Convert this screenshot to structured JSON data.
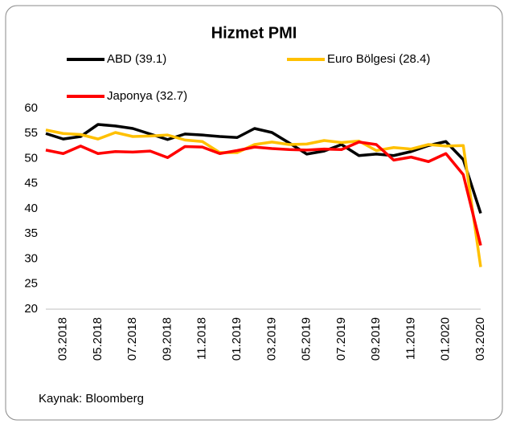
{
  "chart_data": {
    "type": "line",
    "title": "Hizmet PMI",
    "categories": [
      null,
      "03.2018",
      null,
      "05.2018",
      null,
      "07.2018",
      null,
      "09.2018",
      null,
      "11.2018",
      null,
      "01.2019",
      null,
      "03.2019",
      null,
      "05.2019",
      null,
      "07.2019",
      null,
      "09.2019",
      null,
      "11.2019",
      null,
      "01.2020",
      null,
      "03.2020"
    ],
    "series": [
      {
        "name": "ABD (39.1)",
        "color": "#000000",
        "values": [
          55.0,
          53.9,
          54.4,
          56.8,
          56.5,
          56.0,
          54.9,
          53.8,
          54.9,
          54.7,
          54.4,
          54.2,
          56.0,
          55.2,
          53.1,
          50.9,
          51.5,
          52.8,
          50.6,
          50.9,
          50.6,
          51.4,
          52.6,
          53.4,
          49.8,
          39.1
        ]
      },
      {
        "name": "Euro Bölgesi (28.4)",
        "color": "#ffc000",
        "values": [
          55.7,
          55.0,
          54.8,
          53.9,
          55.2,
          54.4,
          54.5,
          54.7,
          53.7,
          53.4,
          51.2,
          51.2,
          52.8,
          53.3,
          52.8,
          52.9,
          53.6,
          53.2,
          53.5,
          51.6,
          52.2,
          51.9,
          52.8,
          52.5,
          52.6,
          28.4
        ]
      },
      {
        "name": "Japonya (32.7)",
        "color": "#ff0000",
        "values": [
          51.7,
          51.0,
          52.5,
          51.0,
          51.4,
          51.3,
          51.5,
          50.2,
          52.4,
          52.3,
          51.0,
          51.6,
          52.3,
          52.0,
          51.8,
          51.7,
          51.9,
          51.8,
          53.3,
          52.8,
          49.7,
          50.3,
          49.4,
          51.0,
          46.8,
          32.7
        ]
      }
    ],
    "ylim": [
      20,
      60
    ],
    "yticks": [
      20,
      25,
      30,
      35,
      40,
      45,
      50,
      55,
      60
    ],
    "source": "Kaynak: Bloomberg"
  }
}
